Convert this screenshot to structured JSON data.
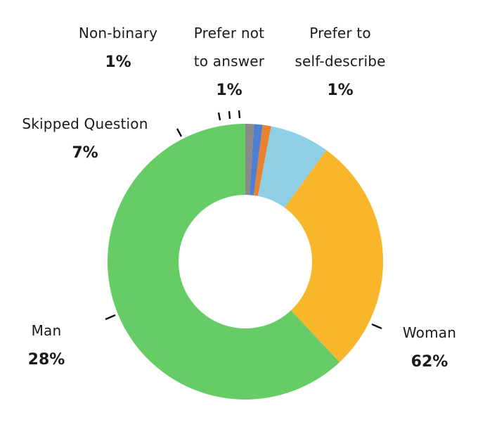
{
  "chart_data": {
    "type": "pie",
    "variant": "donut",
    "title": "",
    "legend": "none",
    "categories": [
      "Woman",
      "Man",
      "Skipped Question",
      "Non-binary",
      "Prefer not to answer",
      "Prefer to self-describe"
    ],
    "values": [
      62,
      28,
      7,
      1,
      1,
      1
    ],
    "colors": [
      "#66cc66",
      "#f8b72b",
      "#8fcfe6",
      "#e8822e",
      "#4f7fd0",
      "#8a8a8a"
    ],
    "slices": [
      {
        "name": "Woman",
        "name_lines": [
          "Woman"
        ],
        "value": 62,
        "pct_label": "62%",
        "color": "#66cc66"
      },
      {
        "name": "Man",
        "name_lines": [
          "Man"
        ],
        "value": 28,
        "pct_label": "28%",
        "color": "#f8b72b"
      },
      {
        "name": "Skipped Question",
        "name_lines": [
          "Skipped Question"
        ],
        "value": 7,
        "pct_label": "7%",
        "color": "#8fcfe6"
      },
      {
        "name": "Non-binary",
        "name_lines": [
          "Non-binary"
        ],
        "value": 1,
        "pct_label": "1%",
        "color": "#e8822e"
      },
      {
        "name": "Prefer not to answer",
        "name_lines": [
          "Prefer not",
          "to answer"
        ],
        "value": 1,
        "pct_label": "1%",
        "color": "#4f7fd0"
      },
      {
        "name": "Prefer to self-describe",
        "name_lines": [
          "Prefer to",
          "self-describe"
        ],
        "value": 1,
        "pct_label": "1%",
        "color": "#8a8a8a"
      }
    ]
  }
}
